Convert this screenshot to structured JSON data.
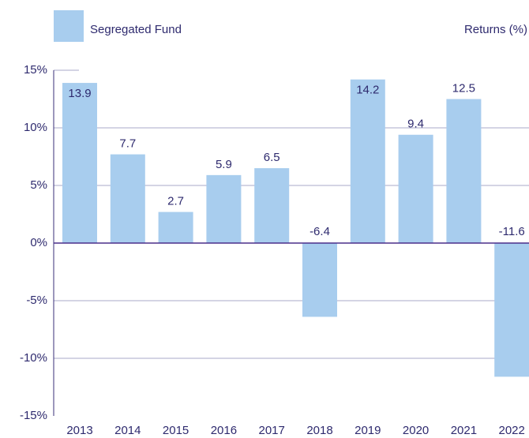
{
  "chart_data": {
    "type": "bar",
    "legend_name": "Segregated Fund",
    "y_axis_label": "Returns (%)",
    "categories": [
      "2013",
      "2014",
      "2015",
      "2016",
      "2017",
      "2018",
      "2019",
      "2020",
      "2021",
      "2022"
    ],
    "series": [
      {
        "name": "Segregated Fund",
        "color": "#a8cdee",
        "values": [
          13.9,
          7.7,
          2.7,
          5.9,
          6.5,
          -6.4,
          14.2,
          9.4,
          12.5,
          -11.6
        ]
      }
    ],
    "ylim": [
      -15,
      15
    ],
    "yticks": [
      {
        "value": -15,
        "label": "-15%"
      },
      {
        "value": -10,
        "label": "-10%"
      },
      {
        "value": -5,
        "label": "-5%"
      },
      {
        "value": 0,
        "label": "0%"
      },
      {
        "value": 5,
        "label": "5%"
      },
      {
        "value": 10,
        "label": "10%"
      },
      {
        "value": 15,
        "label": "15%"
      }
    ],
    "grid": true
  }
}
